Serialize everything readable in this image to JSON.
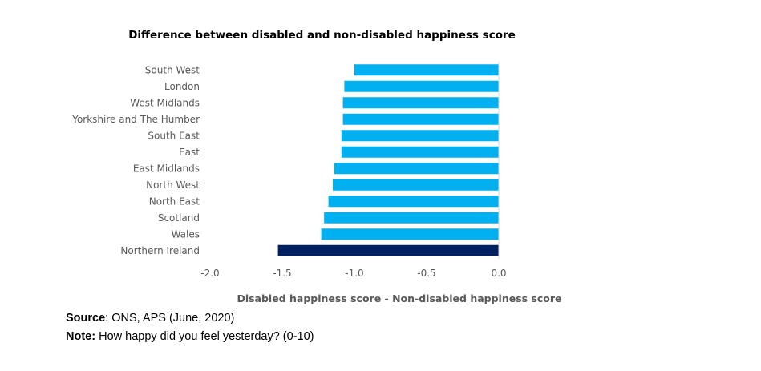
{
  "chart_data": {
    "type": "bar",
    "orientation": "horizontal",
    "title": "Difference between disabled and non-disabled happiness score",
    "xlabel": "Disabled happiness score - Non-disabled happiness score",
    "ylabel": "",
    "xlim": [
      -2.0,
      0.0
    ],
    "x_ticks": [
      "-2.0",
      "-1.5",
      "-1.0",
      "-0.5",
      "0.0"
    ],
    "categories": [
      "South West",
      "London",
      "West Midlands",
      "Yorkshire and The Humber",
      "South East",
      "East",
      "East Midlands",
      "North West",
      "North East",
      "Scotland",
      "Wales",
      "Northern Ireland"
    ],
    "values": [
      -1.0,
      -1.07,
      -1.08,
      -1.08,
      -1.09,
      -1.09,
      -1.14,
      -1.15,
      -1.18,
      -1.21,
      -1.23,
      -1.53
    ],
    "colors": [
      "#00b0f0",
      "#00b0f0",
      "#00b0f0",
      "#00b0f0",
      "#00b0f0",
      "#00b0f0",
      "#00b0f0",
      "#00b0f0",
      "#00b0f0",
      "#00b0f0",
      "#00b0f0",
      "#002060"
    ],
    "grid": false,
    "legend": "none"
  },
  "footnotes": {
    "source_key": "Source",
    "source_text": ": ONS, APS (June, 2020)",
    "note_key": "Note:",
    "note_text": " How happy did you feel yesterday? (0-10)"
  }
}
